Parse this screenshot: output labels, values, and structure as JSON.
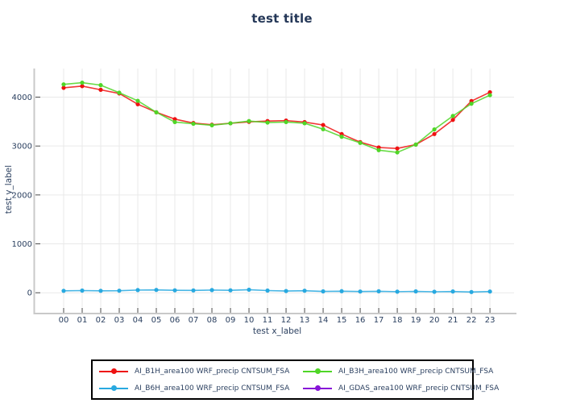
{
  "page": {
    "background": "#ffffff"
  },
  "text_colors": {
    "title": "#253858",
    "axis_text": "#2a3f5f"
  },
  "axis_style": {
    "gridline_color": "#e9e9e9",
    "axis_line_color": "#c9c9c9",
    "tick_color": "#4a4a4a"
  },
  "chart_data": {
    "type": "line",
    "title": "test title",
    "xlabel": "test x_label",
    "ylabel": "test y_label",
    "x_tick_labels": [
      "00",
      "01",
      "02",
      "03",
      "04",
      "05",
      "06",
      "07",
      "08",
      "09",
      "10",
      "11",
      "12",
      "13",
      "14",
      "15",
      "16",
      "17",
      "18",
      "19",
      "20",
      "21",
      "22",
      "23"
    ],
    "y_tick_values": [
      0,
      1000,
      2000,
      3000,
      4000
    ],
    "y_tick_labels": [
      "0",
      "1000",
      "2000",
      "3000",
      "4000"
    ],
    "xlim": [
      -1.26,
      24.3
    ],
    "ylim": [
      -293,
      4585
    ],
    "grid": true,
    "legend_position": "bottom-center boxed, 2 columns",
    "marker": "circle",
    "series": [
      {
        "name": "AI_B1H_area100 WRF_precip CNTSUM_FSA",
        "color": "#ee1111",
        "plotted": true,
        "values": [
          4190,
          4225,
          4150,
          4075,
          3855,
          3690,
          3550,
          3470,
          3435,
          3465,
          3495,
          3510,
          3520,
          3490,
          3430,
          3245,
          3080,
          2970,
          2950,
          3030,
          3245,
          3535,
          3920,
          4100
        ]
      },
      {
        "name": "AI_B3H_area100 WRF_precip CNTSUM_FSA",
        "color": "#4fd627",
        "plotted": true,
        "values": [
          4260,
          4295,
          4245,
          4090,
          3925,
          3690,
          3490,
          3455,
          3425,
          3465,
          3510,
          3480,
          3490,
          3465,
          3345,
          3190,
          3065,
          2915,
          2870,
          3030,
          3340,
          3615,
          3865,
          4040
        ]
      },
      {
        "name": "AI_B6H_area100 WRF_precip CNTSUM_FSA",
        "color": "#28a9e0",
        "plotted": true,
        "values": [
          40,
          45,
          40,
          42,
          55,
          58,
          50,
          48,
          55,
          50,
          62,
          45,
          35,
          42,
          28,
          32,
          25,
          30,
          22,
          28,
          20,
          26,
          15,
          25
        ]
      },
      {
        "name": "AI_GDAS_area100 WRF_precip CNTSUM_FSA",
        "color": "#8714d8",
        "plotted": false,
        "values": []
      }
    ]
  }
}
